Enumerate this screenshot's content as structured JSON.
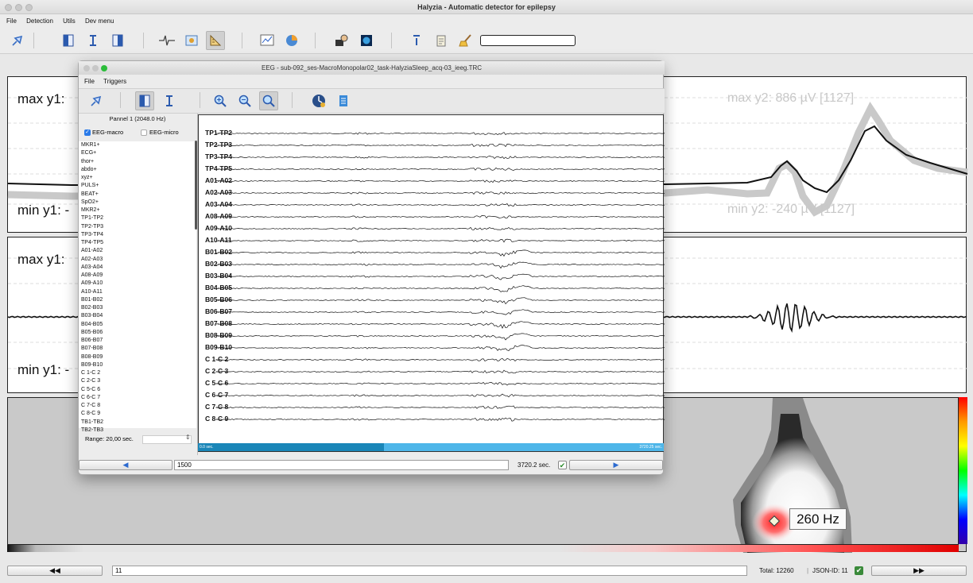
{
  "app": {
    "window_title": "Halyzia - Automatic detector for epilepsy",
    "menu": [
      "File",
      "Detection",
      "Utils",
      "Dev menu"
    ]
  },
  "plots": {
    "panel1": {
      "max_y1": "max y1: ",
      "min_y1": "min y1: -",
      "max_y2": "max y2: 886 µV [1127]",
      "min_y2": "min y2: -240 µV [1127]"
    },
    "panel2": {
      "max_y1": "max y1: ",
      "min_y1": "min y1: -"
    },
    "spectrogram": {
      "freq_label": "260 Hz"
    }
  },
  "bottom": {
    "prev_label": "◀◀",
    "next_label": "▶▶",
    "index_value": "11",
    "total_label": "Total: 12260",
    "json_id_label": "JSON-ID: 11",
    "accept_check": "✔"
  },
  "eeg": {
    "title": "EEG - sub-092_ses-MacroMonopolar02_task-HalyziaSleep_acq-03_ieeg.TRC",
    "menu": [
      "File",
      "Triggers"
    ],
    "panel_label": "Pannel 1 (2048.0 Hz)",
    "checkbox_macro": "EEG-macro",
    "checkbox_micro": "EEG-micro",
    "channels_list": [
      "MKR1+",
      "ECG+",
      "thor+",
      "abdo+",
      "xyz+",
      "PULS+",
      "BEAT+",
      "SpO2+",
      "MKR2+",
      "TP1-TP2",
      "TP2-TP3",
      "TP3-TP4",
      "TP4-TP5",
      "A01-A02",
      "A02-A03",
      "A03-A04",
      "A08-A09",
      "A09-A10",
      "A10-A11",
      "B01-B02",
      "B02-B03",
      "B03-B04",
      "B04-B05",
      "B05-B06",
      "B06-B07",
      "B07-B08",
      "B08-B09",
      "B09-B10",
      "C 1-C 2",
      "C 2-C 3",
      "C 5-C 6",
      "C 6-C 7",
      "C 7-C 8",
      "C 8-C 9",
      "TB1-TB2",
      "TB2-TB3"
    ],
    "traces": [
      "TP1-TP2",
      "TP2-TP3",
      "TP3-TP4",
      "TP4-TP5",
      "A01-A02",
      "A02-A03",
      "A03-A04",
      "A08-A09",
      "A09-A10",
      "A10-A11",
      "B01-B02",
      "B02-B03",
      "B03-B04",
      "B04-B05",
      "B05-B06",
      "B06-B07",
      "B07-B08",
      "B08-B09",
      "B09-B10",
      "C 1-C 2",
      "C 2-C 3",
      "C 5-C 6",
      "C 6-C 7",
      "C 7-C 8",
      "C 8-C 9"
    ],
    "time_start": "0.0 sec.",
    "time_end": "3720.25 sec.",
    "range_label": "Range: 20,00 sec.",
    "position_value": "1500",
    "duration_label": "3720.2 sec.",
    "prev_label": "◀",
    "next_label": "▶",
    "check_mark": "✔",
    "position_fraction": 0.4
  }
}
